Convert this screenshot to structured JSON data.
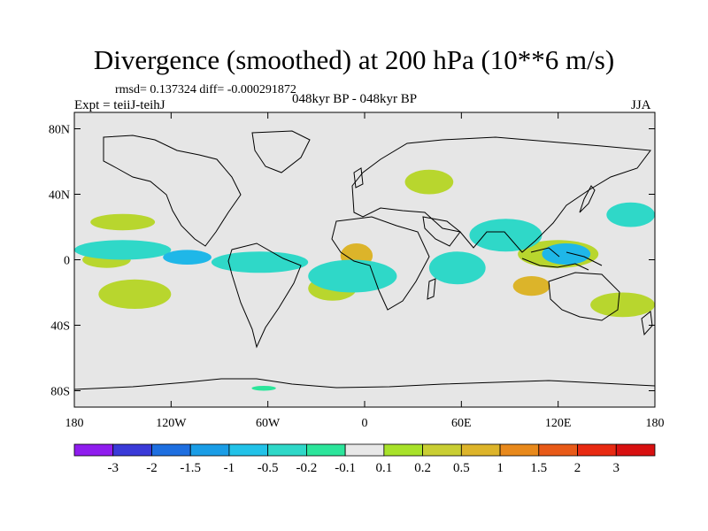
{
  "chart_data": {
    "type": "heatmap",
    "title": "Divergence (smoothed) at 200 hPa (10**6 m/s)",
    "stats_line": "rmsd= 0.137324 diff= -0.000291872",
    "left_label": "Expt = teiiJ-teihJ",
    "center_label": "048kyr BP - 048kyr BP",
    "right_label": "JJA",
    "x_ticks": [
      "180",
      "120W",
      "60W",
      "0",
      "60E",
      "120E",
      "180"
    ],
    "y_ticks": [
      "80N",
      "40N",
      "0",
      "40S",
      "80S"
    ],
    "x_range": [
      -180,
      180
    ],
    "y_range": [
      -90,
      90
    ],
    "colorbar": {
      "levels": [
        "-3",
        "-2",
        "-1.5",
        "-1",
        "-0.5",
        "-0.2",
        "-0.1",
        "0.1",
        "0.2",
        "0.5",
        "1",
        "1.5",
        "2",
        "3"
      ],
      "colors": [
        "#8f1dee",
        "#3a3ad8",
        "#1e6fe0",
        "#1a9de6",
        "#22c2e8",
        "#2fd8c8",
        "#2ce59b",
        "#e8e8e8",
        "#a8e22a",
        "#c9ce33",
        "#ddb42a",
        "#e8891c",
        "#e85a18",
        "#e82a12",
        "#d81010"
      ]
    },
    "anomaly_regions": [
      {
        "sign": "positive",
        "level": "0.2-0.5",
        "lon": [
          -175,
          -145
        ],
        "lat": [
          -5,
          5
        ]
      },
      {
        "sign": "positive",
        "level": "0.2-0.5",
        "lon": [
          -170,
          -130
        ],
        "lat": [
          18,
          28
        ]
      },
      {
        "sign": "positive",
        "level": "0.2-0.5",
        "lon": [
          -165,
          -120
        ],
        "lat": [
          -30,
          -12
        ]
      },
      {
        "sign": "positive",
        "level": "0.2-0.5",
        "lon": [
          -35,
          -5
        ],
        "lat": [
          -25,
          -10
        ]
      },
      {
        "sign": "positive",
        "level": "0.5-1",
        "lon": [
          -15,
          5
        ],
        "lat": [
          -5,
          10
        ]
      },
      {
        "sign": "positive",
        "level": "0.2-0.5",
        "lon": [
          25,
          55
        ],
        "lat": [
          40,
          55
        ]
      },
      {
        "sign": "positive",
        "level": "0.2-0.5",
        "lon": [
          95,
          145
        ],
        "lat": [
          -5,
          12
        ]
      },
      {
        "sign": "positive",
        "level": "0.5-1",
        "lon": [
          92,
          115
        ],
        "lat": [
          -22,
          -10
        ]
      },
      {
        "sign": "positive",
        "level": "0.2-0.5",
        "lon": [
          140,
          180
        ],
        "lat": [
          -35,
          -20
        ]
      },
      {
        "sign": "negative",
        "level": "-0.2--0.5",
        "lon": [
          -180,
          -120
        ],
        "lat": [
          0,
          12
        ]
      },
      {
        "sign": "negative",
        "level": "-0.5--1",
        "lon": [
          -125,
          -95
        ],
        "lat": [
          -3,
          6
        ]
      },
      {
        "sign": "negative",
        "level": "-0.2--0.5",
        "lon": [
          -95,
          -35
        ],
        "lat": [
          -8,
          5
        ]
      },
      {
        "sign": "negative",
        "level": "-0.2--0.5",
        "lon": [
          -35,
          20
        ],
        "lat": [
          -20,
          0
        ]
      },
      {
        "sign": "negative",
        "level": "-0.2--0.5",
        "lon": [
          40,
          75
        ],
        "lat": [
          -15,
          5
        ]
      },
      {
        "sign": "negative",
        "level": "-0.2--0.5",
        "lon": [
          65,
          110
        ],
        "lat": [
          5,
          25
        ]
      },
      {
        "sign": "negative",
        "level": "-0.5--1",
        "lon": [
          110,
          140
        ],
        "lat": [
          -3,
          10
        ]
      },
      {
        "sign": "negative",
        "level": "-0.2--0.5",
        "lon": [
          150,
          180
        ],
        "lat": [
          20,
          35
        ]
      },
      {
        "sign": "negative",
        "level": "-0.1--0.2",
        "lon": [
          -70,
          -55
        ],
        "lat": [
          -80,
          -77
        ]
      }
    ]
  }
}
